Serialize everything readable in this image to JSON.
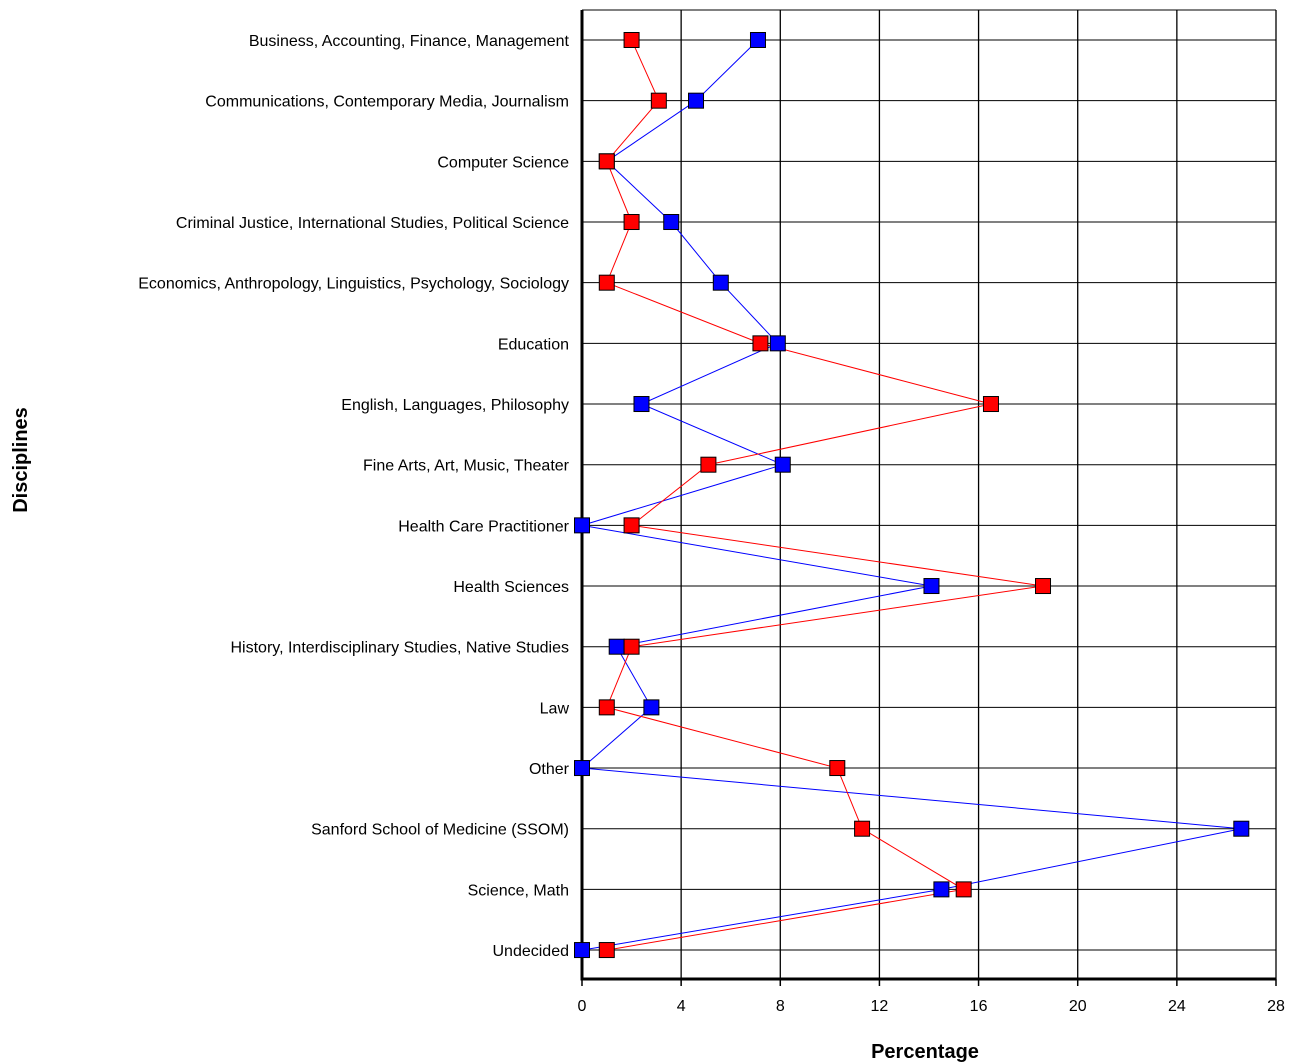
{
  "chart_data": {
    "type": "line",
    "orientation": "horizontal",
    "xlabel": "Percentage",
    "ylabel": "Disciplines",
    "xlim": [
      0,
      28
    ],
    "xticks": [
      0,
      4,
      8,
      12,
      16,
      20,
      24,
      28
    ],
    "grid": true,
    "categories": [
      "Business, Accounting, Finance, Management",
      "Communications, Contemporary Media, Journalism",
      "Computer Science",
      "Criminal Justice, International Studies, Political Science",
      "Economics, Anthropology, Linguistics, Psychology, Sociology",
      "Education",
      "English, Languages, Philosophy",
      "Fine Arts, Art, Music, Theater",
      "Health Care Practitioner",
      "Health Sciences",
      "History, Interdisciplinary Studies, Native Studies",
      "Law",
      "Other",
      "Sanford School of Medicine (SSOM)",
      "Science, Math",
      "Undecided"
    ],
    "series": [
      {
        "color": "#0000ff",
        "values": [
          7.1,
          4.6,
          1.0,
          3.6,
          5.6,
          7.9,
          2.4,
          8.1,
          0.0,
          14.1,
          1.4,
          2.8,
          0.0,
          26.6,
          14.5,
          0.0
        ]
      },
      {
        "color": "#ff0000",
        "values": [
          2.0,
          3.1,
          1.0,
          2.0,
          1.0,
          7.2,
          16.5,
          5.1,
          2.0,
          18.6,
          2.0,
          1.0,
          10.3,
          11.3,
          15.4,
          1.0
        ]
      }
    ]
  }
}
